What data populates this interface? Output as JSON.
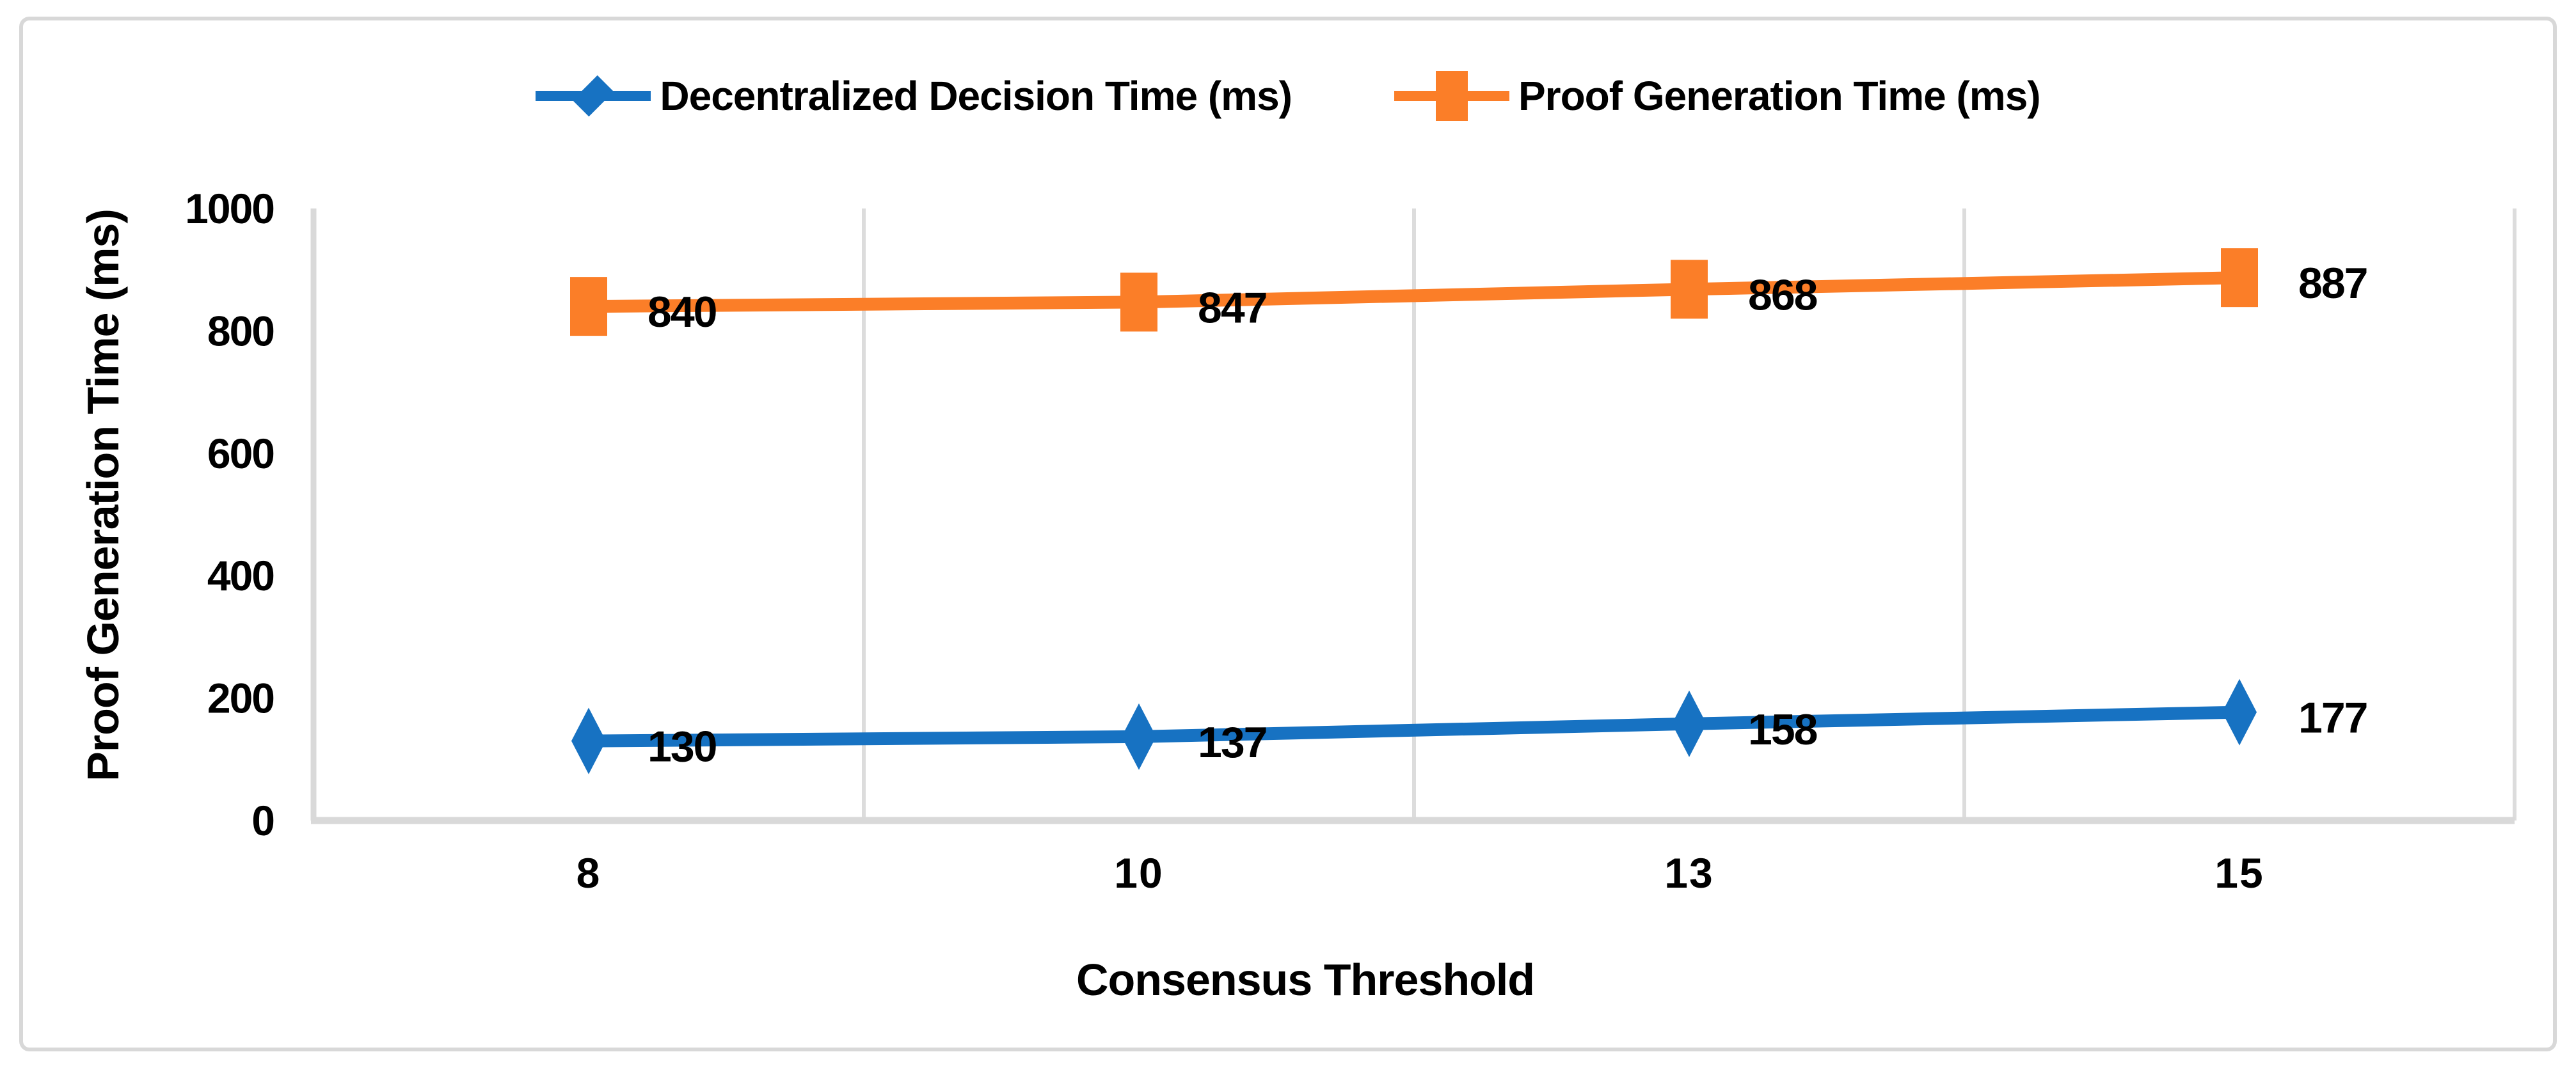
{
  "chart_data": {
    "type": "line",
    "title": "",
    "xlabel": "Consensus Threshold",
    "ylabel": "Proof Generation Time (ms)",
    "categories": [
      "8",
      "10",
      "13",
      "15"
    ],
    "ylim": [
      0,
      1000
    ],
    "y_ticks": [
      0,
      200,
      400,
      600,
      800,
      1000
    ],
    "grid": "vertical-only",
    "legend_position": "top-center",
    "show_data_labels": true,
    "series": [
      {
        "name": "Decentralized Decision Time (ms)",
        "marker": "diamond",
        "color": "#1772C2",
        "values": [
          130,
          137,
          158,
          177
        ]
      },
      {
        "name": "Proof Generation Time (ms)",
        "marker": "square",
        "color": "#FB7E28",
        "values": [
          840,
          847,
          868,
          887
        ]
      }
    ],
    "colors": {
      "gridline": "#DCDCDC",
      "axis_line": "#D9D9D9",
      "text": "#000000",
      "frame_border": "#D8D8D8",
      "background": "#FFFFFF"
    }
  }
}
